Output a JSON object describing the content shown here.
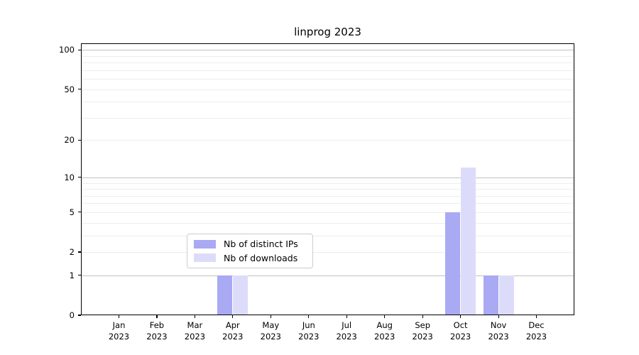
{
  "chart_data": {
    "type": "bar",
    "title": "linprog 2023",
    "categories": [
      "Jan",
      "Feb",
      "Mar",
      "Apr",
      "May",
      "Jun",
      "Jul",
      "Aug",
      "Sep",
      "Oct",
      "Nov",
      "Dec"
    ],
    "year_label": "2023",
    "series": [
      {
        "name": "Nb of distinct IPs",
        "color": "#a9a9f4",
        "values": [
          0,
          0,
          0,
          1,
          0,
          0,
          0,
          0,
          0,
          5,
          1,
          0
        ]
      },
      {
        "name": "Nb of downloads",
        "color": "#dcdcfa",
        "values": [
          0,
          0,
          0,
          1,
          0,
          0,
          0,
          0,
          0,
          12,
          1,
          0
        ]
      }
    ],
    "y_axis": {
      "scale": "log1p",
      "ylim": [
        0,
        112
      ],
      "ticks": [
        0,
        1,
        2,
        5,
        10,
        20,
        50,
        100
      ],
      "major_gridlines": [
        1,
        10,
        100
      ],
      "minor_gridlines": [
        2,
        3,
        4,
        5,
        6,
        7,
        8,
        9,
        20,
        30,
        40,
        50,
        60,
        70,
        80,
        90
      ]
    },
    "xlabel": "",
    "ylabel": "",
    "legend_position": "bottom-center",
    "grid": true,
    "colors": {
      "major_grid": "#c2c2c2",
      "minor_grid": "#ededed",
      "axis": "#000000",
      "legend_border": "#cccccc",
      "background": "#ffffff"
    }
  }
}
